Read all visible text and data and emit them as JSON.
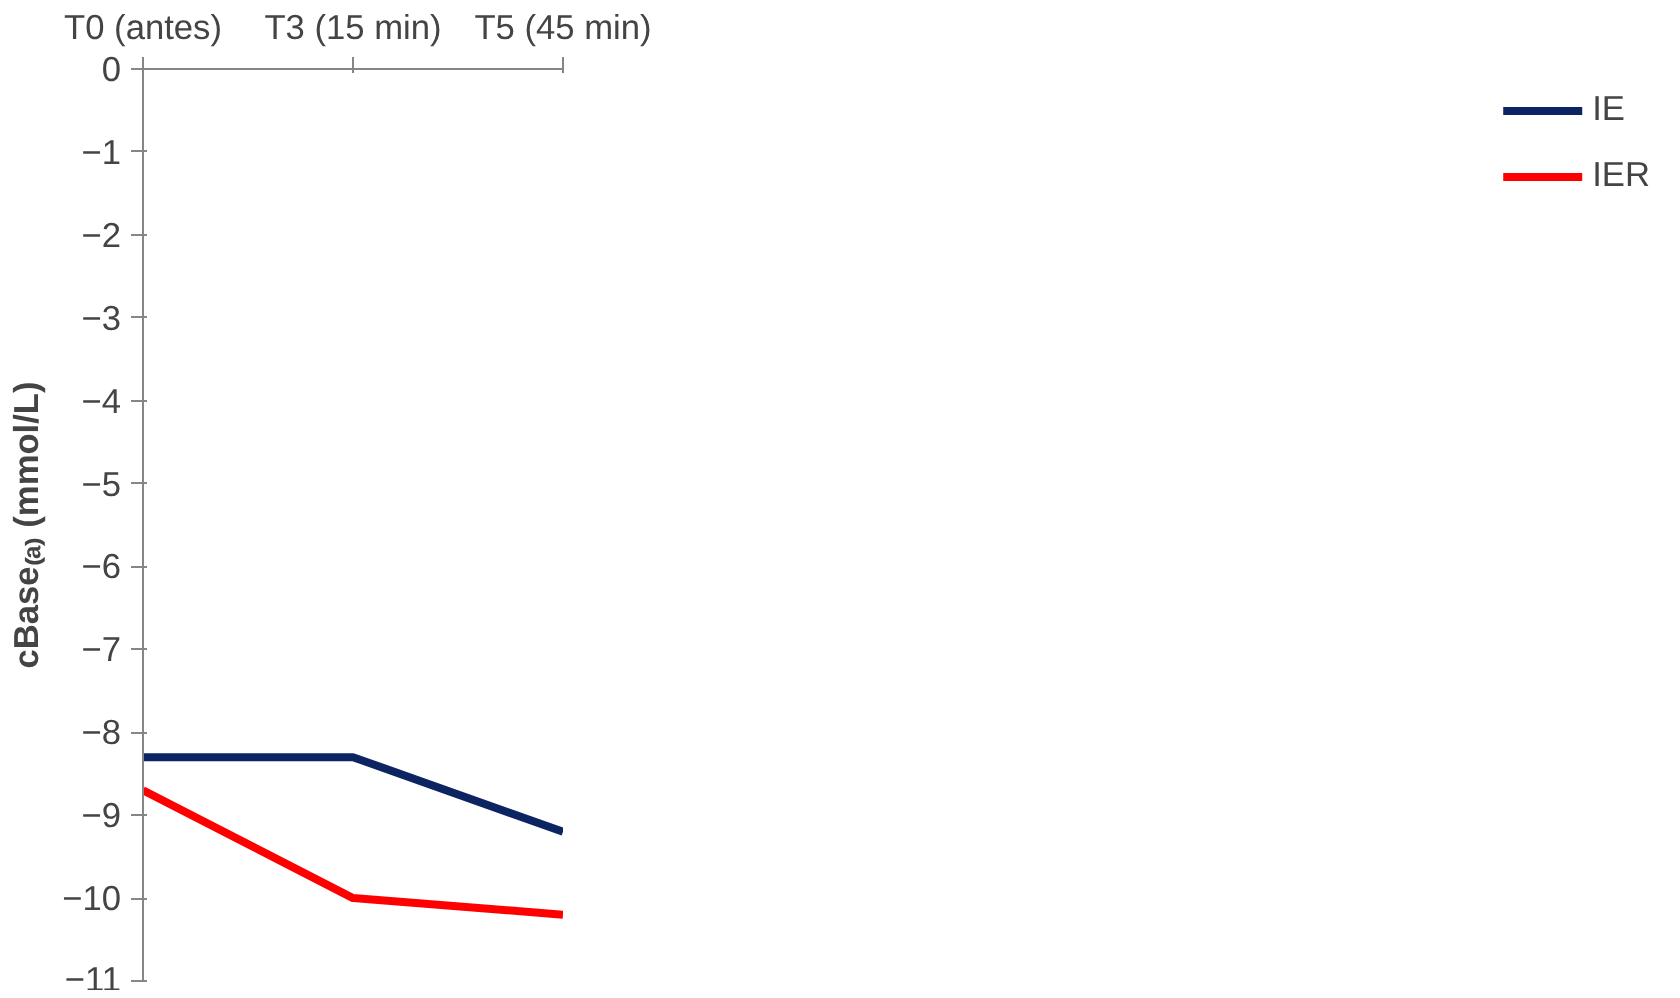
{
  "chart_data": {
    "type": "line",
    "categories": [
      "T0 (antes)",
      "T3 (15 min)",
      "T5 (45 min)"
    ],
    "ylabel": "cBase₍ₐ₎ (mmol/L)",
    "ylim": [
      -11,
      0
    ],
    "yticks": [
      0,
      -1,
      -2,
      -3,
      -4,
      -5,
      -6,
      -7,
      -8,
      -9,
      -10,
      -11
    ],
    "series": [
      {
        "name": "IE",
        "color": "#0d2462",
        "values": [
          -8.3,
          -8.3,
          -9.2
        ]
      },
      {
        "name": "IER",
        "color": "#ff0000",
        "values": [
          -8.7,
          -10.0,
          -10.2
        ]
      }
    ],
    "grid": false,
    "legend": "right",
    "marker": "none",
    "line_style": "solid"
  }
}
